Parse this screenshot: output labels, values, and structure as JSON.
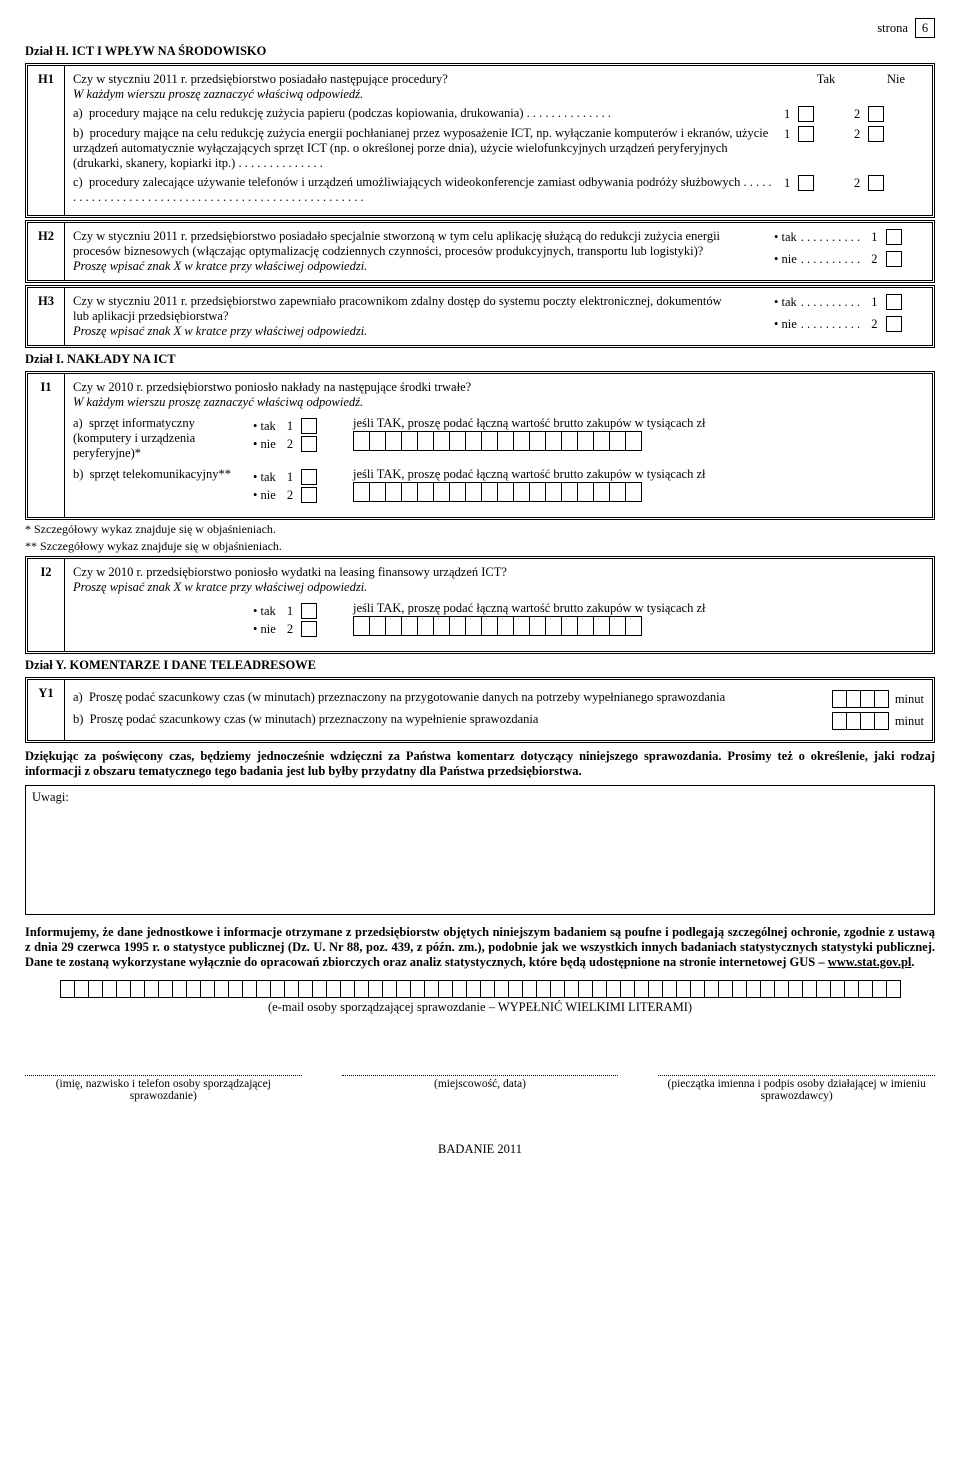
{
  "page": {
    "label": "strona",
    "num": "6"
  },
  "H": {
    "title": "Dział H. ICT I WPŁYW NA ŚRODOWISKO",
    "H1": {
      "code": "H1",
      "q": "Czy w styczniu 2011 r. przedsiębiorstwo posiadało następujące procedury?",
      "hint": "W każdym wierszu proszę zaznaczyć właściwą odpowiedź.",
      "yes": "Tak",
      "no": "Nie",
      "a_lbl": "a)",
      "a": "procedury mające na celu redukcję zużycia papieru (podczas kopiowania, drukowania) . . . . . . . . . . . . . .",
      "b_lbl": "b)",
      "b": "procedury mające na celu redukcję zużycia energii pochłanianej przez wyposażenie ICT, np. wyłączanie komputerów i ekranów, użycie urządzeń automatycznie wyłączających sprzęt ICT (np. o określonej porze dnia), użycie wielofunkcyjnych urządzeń peryferyjnych (drukarki, skanery, kopiarki itp.) . . . . . . . . . . . . . .",
      "c_lbl": "c)",
      "c": "procedury zalecające używanie telefonów i urządzeń umożliwiających wideokonferencje zamiast odbywania podróży służbowych   . . . . . . . . . . . . . . . . . . . . . . . . . . . . . . . . . . . . . . . . . . . . . . . . . . . .",
      "m1": "1",
      "m2": "2"
    },
    "H2": {
      "code": "H2",
      "q": "Czy w styczniu 2011 r. przedsiębiorstwo posiadało specjalnie stworzoną w tym celu aplikację służącą do redukcji zużycia energii procesów biznesowych (włączając optymalizację codziennych czynności, procesów produkcyjnych, transportu lub logistyki)?",
      "hint": "Proszę wpisać znak X w kratce przy właściwej odpowiedzi.",
      "yes": "tak",
      "no": "nie",
      "m1": "1",
      "m2": "2"
    },
    "H3": {
      "code": "H3",
      "q": "Czy w styczniu 2011 r. przedsiębiorstwo zapewniało pracownikom zdalny dostęp do systemu poczty elektronicznej, dokumentów lub aplikacji przedsiębiorstwa?",
      "hint": "Proszę wpisać znak X w kratce przy właściwej odpowiedzi.",
      "yes": "tak",
      "no": "nie",
      "m1": "1",
      "m2": "2"
    }
  },
  "I": {
    "title": "Dział I. NAKŁADY NA ICT",
    "I1": {
      "code": "I1",
      "q": "Czy w 2010 r. przedsiębiorstwo poniosło nakłady na następujące środki trwałe?",
      "hint": "W każdym wierszu proszę zaznaczyć właściwą odpowiedź.",
      "value_prompt": "jeśli TAK, proszę podać łączną wartość brutto zakupów w tysiącach zł",
      "a_lbl": "a)",
      "a": "sprzęt informatyczny (komputery i urządzenia peryferyjne)*",
      "b_lbl": "b)",
      "b": "sprzęt telekomunikacyjny**",
      "yes": "tak",
      "no": "nie",
      "m1": "1",
      "m2": "2",
      "foot1": "* Szczegółowy wykaz znajduje się w objaśnieniach.",
      "foot2": "** Szczegółowy wykaz znajduje się w objaśnieniach."
    },
    "I2": {
      "code": "I2",
      "q": "Czy w 2010 r. przedsiębiorstwo poniosło wydatki na leasing finansowy urządzeń ICT?",
      "hint": "Proszę wpisać znak X w kratce przy właściwej odpowiedzi.",
      "value_prompt": "jeśli TAK, proszę podać łączną wartość brutto zakupów w tysiącach zł",
      "yes": "tak",
      "no": "nie",
      "m1": "1",
      "m2": "2"
    }
  },
  "Y": {
    "title": "Dział Y. KOMENTARZE I DANE TELEADRESOWE",
    "Y1": {
      "code": "Y1",
      "a_lbl": "a)",
      "a": "Proszę podać szacunkowy czas (w minutach) przeznaczony na przygotowanie danych na potrzeby wypełnianego sprawozdania",
      "b_lbl": "b)",
      "b": "Proszę podać szacunkowy czas (w minutach) przeznaczony na wypełnienie sprawozdania",
      "unit": "minut"
    },
    "thanks": "Dziękując za poświęcony czas, będziemy jednocześnie wdzięczni za Państwa komentarz dotyczący niniejszego sprawozdania. Prosimy też o określenie, jaki rodzaj informacji z obszaru tematycznego tego badania jest lub byłby przydatny dla Państwa przedsiębiorstwa.",
    "comments_label": "Uwagi:",
    "info": "Informujemy, że dane jednostkowe i informacje otrzymane z przedsiębiorstw objętych niniejszym badaniem są poufne i podlegają szczególnej ochronie, zgodnie z ustawą z dnia 29 czerwca 1995 r. o statystyce publicznej (Dz. U. Nr 88, poz. 439, z późn. zm.), podobnie jak we wszystkich innych badaniach statystycznych statystyki publicznej. Dane te zostaną wykorzystane wyłącznie do opracowań zbiorczych oraz analiz statystycznych, które będą udostępnione na stronie internetowej GUS – ",
    "info_link": "www.stat.gov.pl",
    "info_dot": ".",
    "email_caption": "(e-mail osoby sporządzającej sprawozdanie – WYPEŁNIĆ WIELKIMI LITERAMI)",
    "sig1": "(imię, nazwisko i telefon osoby sporządzającej sprawozdanie)",
    "sig2": "(miejscowość, data)",
    "sig3": "(pieczątka imienna i podpis osoby działającej w imieniu sprawozdawcy)",
    "badanie": "BADANIE 2011"
  }
}
